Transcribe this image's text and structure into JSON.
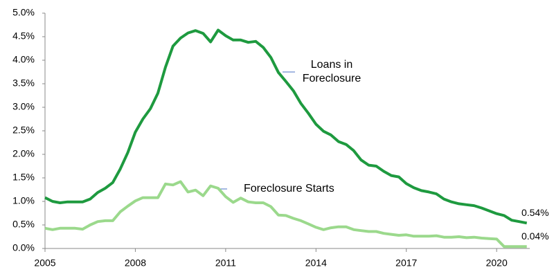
{
  "chart_data": {
    "type": "line",
    "x": [
      2005,
      2005.25,
      2005.5,
      2005.75,
      2006,
      2006.25,
      2006.5,
      2006.75,
      2007,
      2007.25,
      2007.5,
      2007.75,
      2008,
      2008.25,
      2008.5,
      2008.75,
      2009,
      2009.25,
      2009.5,
      2009.75,
      2010,
      2010.25,
      2010.5,
      2010.75,
      2011,
      2011.25,
      2011.5,
      2011.75,
      2012,
      2012.25,
      2012.5,
      2012.75,
      2013,
      2013.25,
      2013.5,
      2013.75,
      2014,
      2014.25,
      2014.5,
      2014.75,
      2015,
      2015.25,
      2015.5,
      2015.75,
      2016,
      2016.25,
      2016.5,
      2016.75,
      2017,
      2017.25,
      2017.5,
      2017.75,
      2018,
      2018.25,
      2018.5,
      2018.75,
      2019,
      2019.25,
      2019.5,
      2019.75,
      2020,
      2020.25,
      2020.5,
      2020.75,
      2021
    ],
    "series": [
      {
        "name": "Loans in Foreclosure",
        "color": "#1e9a3f",
        "values": [
          1.08,
          1.0,
          0.97,
          0.99,
          0.99,
          0.99,
          1.05,
          1.19,
          1.28,
          1.4,
          1.69,
          2.04,
          2.47,
          2.75,
          2.97,
          3.3,
          3.85,
          4.3,
          4.47,
          4.58,
          4.63,
          4.57,
          4.39,
          4.64,
          4.52,
          4.43,
          4.43,
          4.38,
          4.4,
          4.27,
          4.06,
          3.74,
          3.55,
          3.35,
          3.08,
          2.87,
          2.64,
          2.49,
          2.41,
          2.27,
          2.21,
          2.08,
          1.88,
          1.77,
          1.75,
          1.64,
          1.55,
          1.52,
          1.38,
          1.29,
          1.23,
          1.2,
          1.16,
          1.05,
          0.99,
          0.95,
          0.93,
          0.91,
          0.86,
          0.8,
          0.74,
          0.7,
          0.6,
          0.57,
          0.54
        ],
        "value_labels": [
          null,
          null,
          null,
          null,
          null,
          null,
          null,
          null,
          null,
          null,
          null,
          null,
          null,
          null,
          null,
          null,
          null,
          null,
          null,
          null,
          null,
          null,
          null,
          null,
          null,
          null,
          null,
          null,
          null,
          null,
          null,
          null,
          null,
          null,
          null,
          null,
          null,
          null,
          null,
          null,
          null,
          null,
          null,
          null,
          null,
          null,
          null,
          null,
          null,
          null,
          null,
          null,
          null,
          null,
          null,
          null,
          null,
          null,
          null,
          null,
          null,
          null,
          null,
          null,
          "0.54%"
        ]
      },
      {
        "name": "Foreclosure Starts",
        "color": "#9bd98c",
        "values": [
          0.43,
          0.4,
          0.43,
          0.43,
          0.43,
          0.41,
          0.5,
          0.57,
          0.59,
          0.59,
          0.78,
          0.9,
          1.01,
          1.08,
          1.08,
          1.08,
          1.37,
          1.35,
          1.42,
          1.2,
          1.24,
          1.12,
          1.33,
          1.28,
          1.1,
          0.98,
          1.07,
          0.99,
          0.97,
          0.97,
          0.89,
          0.71,
          0.7,
          0.64,
          0.59,
          0.52,
          0.45,
          0.4,
          0.44,
          0.46,
          0.46,
          0.4,
          0.38,
          0.36,
          0.36,
          0.32,
          0.3,
          0.28,
          0.29,
          0.26,
          0.26,
          0.26,
          0.27,
          0.24,
          0.24,
          0.25,
          0.23,
          0.24,
          0.22,
          0.21,
          0.2,
          0.04,
          0.04,
          0.04,
          0.04
        ],
        "value_labels": [
          null,
          null,
          null,
          null,
          null,
          null,
          null,
          null,
          null,
          null,
          null,
          null,
          null,
          null,
          null,
          null,
          null,
          null,
          null,
          null,
          null,
          null,
          null,
          null,
          null,
          null,
          null,
          null,
          null,
          null,
          null,
          null,
          null,
          null,
          null,
          null,
          null,
          null,
          null,
          null,
          null,
          null,
          null,
          null,
          null,
          null,
          null,
          null,
          null,
          null,
          null,
          null,
          null,
          null,
          null,
          null,
          null,
          null,
          null,
          null,
          null,
          null,
          null,
          null,
          "0.04%"
        ]
      }
    ],
    "xlim": [
      2005,
      2021.1
    ],
    "xticks": [
      2005,
      2008,
      2011,
      2014,
      2017,
      2020
    ],
    "ylim": [
      0,
      5
    ],
    "yticks": [
      {
        "value": 0,
        "label": "0.0%"
      },
      {
        "value": 0.5,
        "label": "0.5%"
      },
      {
        "value": 1,
        "label": "1.0%"
      },
      {
        "value": 1.5,
        "label": "1.5%"
      },
      {
        "value": 2,
        "label": "2.0%"
      },
      {
        "value": 2.5,
        "label": "2.5%"
      },
      {
        "value": 3,
        "label": "3.0%"
      },
      {
        "value": 3.5,
        "label": "3.5%"
      },
      {
        "value": 4,
        "label": "4.0%"
      },
      {
        "value": 4.5,
        "label": "4.5%"
      },
      {
        "value": 5,
        "label": "5.0%"
      }
    ],
    "grid": false
  }
}
